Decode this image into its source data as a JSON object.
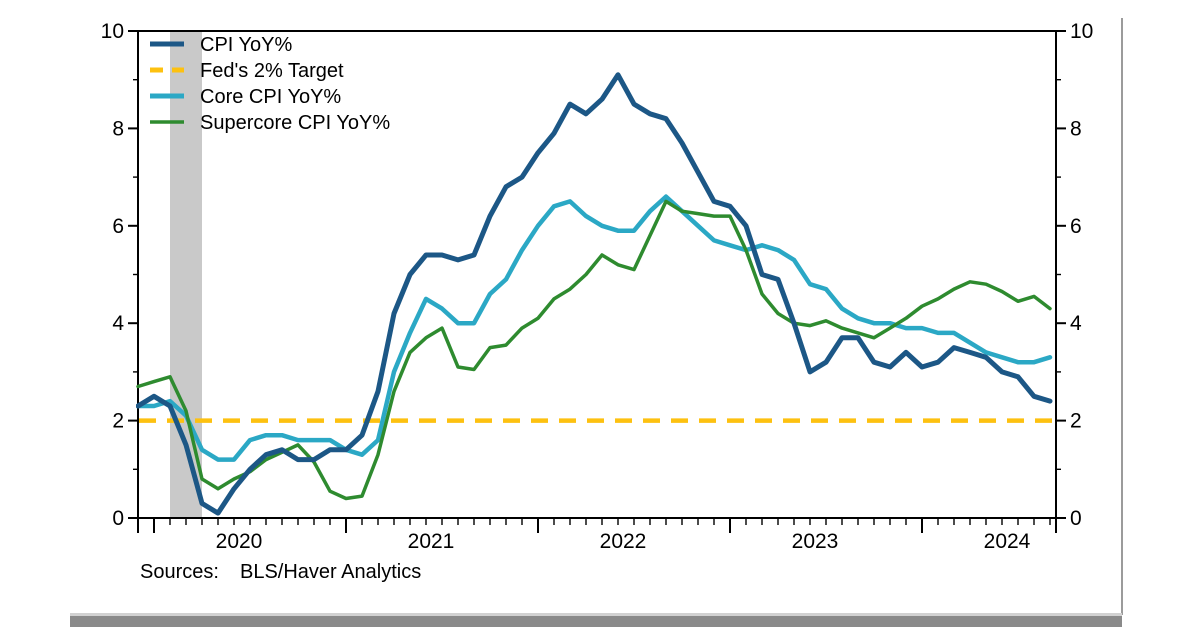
{
  "page": {
    "background": "#ffffff",
    "right_border_color": "#9b9b9b",
    "scrollbar_color": "#8a8a8a",
    "scrollbar_edge_color": "#d2d2d2"
  },
  "chart_data": {
    "type": "line",
    "title": "",
    "x_frequency": "monthly",
    "x_start": "2019-12",
    "x_end": "2024-09",
    "ylim": [
      0,
      10
    ],
    "y_ticks": [
      0,
      2,
      4,
      6,
      8,
      10
    ],
    "y_minor_ticks": [
      1,
      3,
      5,
      7,
      9
    ],
    "x_year_labels": [
      "2020",
      "2021",
      "2022",
      "2023",
      "2024"
    ],
    "grid": false,
    "legend_position": "top-left",
    "axis_color": "#000000",
    "recession_band": {
      "from": "2020-02",
      "to": "2020-04",
      "color": "#c9c9c9"
    },
    "target_line": {
      "label": "Fed's 2% Target",
      "value": 2,
      "color": "#fdc110",
      "style": "dashed"
    },
    "series": [
      {
        "name": "CPI YoY%",
        "color": "#1c5786",
        "style": "solid",
        "width": 5,
        "values": [
          2.3,
          2.5,
          2.3,
          1.5,
          0.3,
          0.1,
          0.6,
          1.0,
          1.3,
          1.4,
          1.2,
          1.2,
          1.4,
          1.4,
          1.7,
          2.6,
          4.2,
          5.0,
          5.4,
          5.4,
          5.3,
          5.4,
          6.2,
          6.8,
          7.0,
          7.5,
          7.9,
          8.5,
          8.3,
          8.6,
          9.1,
          8.5,
          8.3,
          8.2,
          7.7,
          7.1,
          6.5,
          6.4,
          6.0,
          5.0,
          4.9,
          4.0,
          3.0,
          3.2,
          3.7,
          3.7,
          3.2,
          3.1,
          3.4,
          3.1,
          3.2,
          3.5,
          3.4,
          3.3,
          3.0,
          2.9,
          2.5,
          2.4
        ]
      },
      {
        "name": "Core CPI YoY%",
        "color": "#2ba8c5",
        "style": "solid",
        "width": 4.5,
        "values": [
          2.3,
          2.3,
          2.4,
          2.1,
          1.4,
          1.2,
          1.2,
          1.6,
          1.7,
          1.7,
          1.6,
          1.6,
          1.6,
          1.4,
          1.3,
          1.6,
          3.0,
          3.8,
          4.5,
          4.3,
          4.0,
          4.0,
          4.6,
          4.9,
          5.5,
          6.0,
          6.4,
          6.5,
          6.2,
          6.0,
          5.9,
          5.9,
          6.3,
          6.6,
          6.3,
          6.0,
          5.7,
          5.6,
          5.5,
          5.6,
          5.5,
          5.3,
          4.8,
          4.7,
          4.3,
          4.1,
          4.0,
          4.0,
          3.9,
          3.9,
          3.8,
          3.8,
          3.6,
          3.4,
          3.3,
          3.2,
          3.2,
          3.3
        ]
      },
      {
        "name": "Supercore CPI YoY%",
        "color": "#2e8b2f",
        "style": "solid",
        "width": 3.5,
        "values": [
          2.7,
          2.8,
          2.9,
          2.2,
          0.8,
          0.6,
          0.8,
          0.95,
          1.2,
          1.35,
          1.5,
          1.15,
          0.55,
          0.4,
          0.45,
          1.3,
          2.6,
          3.4,
          3.7,
          3.9,
          3.1,
          3.05,
          3.5,
          3.55,
          3.9,
          4.1,
          4.5,
          4.7,
          5.0,
          5.4,
          5.2,
          5.1,
          5.8,
          6.5,
          6.3,
          6.25,
          6.2,
          6.2,
          5.5,
          4.6,
          4.2,
          4.0,
          3.95,
          4.05,
          3.9,
          3.8,
          3.7,
          3.9,
          4.1,
          4.35,
          4.5,
          4.7,
          4.85,
          4.8,
          4.65,
          4.45,
          4.55,
          4.3
        ]
      }
    ],
    "legend": [
      {
        "label": "CPI YoY%",
        "color": "#1c5786",
        "dash": false
      },
      {
        "label": "Fed's 2% Target",
        "color": "#fdc110",
        "dash": true
      },
      {
        "label": "Core CPI YoY%",
        "color": "#2ba8c5",
        "dash": false
      },
      {
        "label": "Supercore CPI YoY%",
        "color": "#2e8b2f",
        "dash": false
      }
    ],
    "sources": {
      "label": "Sources:",
      "value": "BLS/Haver Analytics"
    }
  }
}
